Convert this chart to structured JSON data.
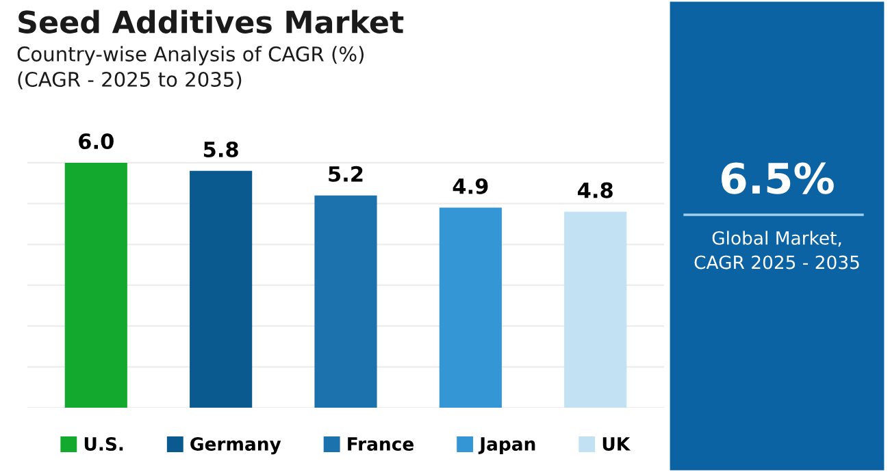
{
  "chart_data": [
    {
      "type": "bar",
      "title": "Seed Additives Market",
      "subtitle": "Country-wise Analysis of CAGR (%)\n(CAGR - 2025 to 2035)",
      "categories": [
        "U.S.",
        "Germany",
        "France",
        "Japan",
        "UK"
      ],
      "values": [
        6.0,
        5.8,
        5.2,
        4.9,
        4.8
      ],
      "value_labels": [
        "6.0",
        "5.8",
        "5.2",
        "4.9",
        "4.8"
      ],
      "colors": [
        "#13a92e",
        "#0b5a8f",
        "#1c72ad",
        "#3596d6",
        "#c2e1f2"
      ],
      "yticks": [
        {
          "value": 0,
          "label": null
        },
        {
          "value": 1,
          "label": null
        },
        {
          "value": 2,
          "label": null
        },
        {
          "value": 3,
          "label": null
        },
        {
          "value": 4,
          "label": null
        },
        {
          "value": 5,
          "label": null
        },
        {
          "value": 6,
          "label": null
        }
      ],
      "grid": "y"
    },
    {
      "type": "other",
      "title": "6.5%",
      "subtitle": "Global Market,\nCAGR 2025 - 2035"
    }
  ]
}
